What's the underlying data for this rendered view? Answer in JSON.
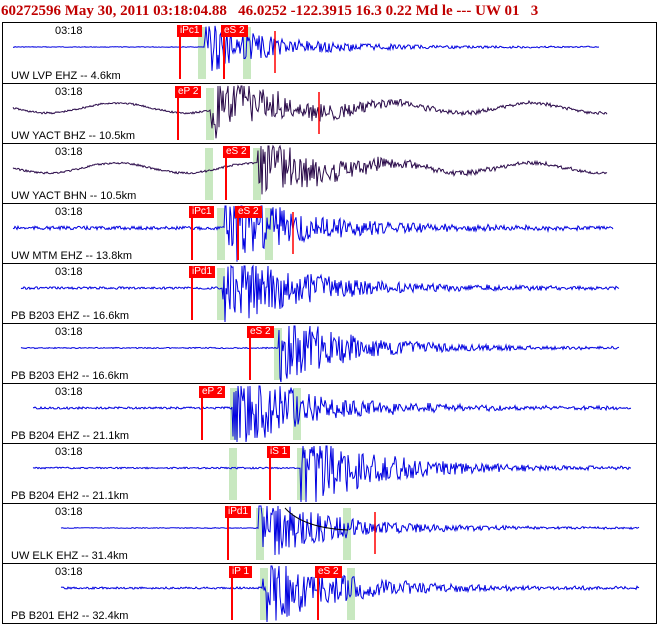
{
  "header": {
    "title": "60272596 May 30, 2011 03:18:04.88   46.0252 -122.3915 16.3 0.22 Md le --- UW 01   3"
  },
  "colors": {
    "header_text": "#c00000",
    "trace_default": "#0000e0",
    "trace_alt": "#2a0a4a",
    "pick": "#ff0000",
    "band": "#c8e8c0"
  },
  "panels": [
    {
      "time": "03:18",
      "station": "UW LVP EHZ -- 4.6km",
      "trace": "blue",
      "picks": [
        {
          "label": "iPc1"
        },
        {
          "label": "eS 2"
        }
      ]
    },
    {
      "time": "03:18",
      "station": "UW YACT BHZ -- 10.5km",
      "trace": "dark",
      "picks": [
        {
          "label": "eP 2"
        }
      ]
    },
    {
      "time": "03:18",
      "station": "UW YACT BHN -- 10.5km",
      "trace": "dark",
      "picks": [
        {
          "label": "eS 2"
        }
      ]
    },
    {
      "time": "03:18",
      "station": "UW MTM EHZ -- 13.8km",
      "trace": "blue",
      "picks": [
        {
          "label": "iPc1"
        },
        {
          "label": "eS 2"
        }
      ]
    },
    {
      "time": "03:18",
      "station": "PB B203 EHZ -- 16.6km",
      "trace": "blue",
      "picks": [
        {
          "label": "iPd1"
        }
      ]
    },
    {
      "time": "03:18",
      "station": "PB B203 EH2 -- 16.6km",
      "trace": "blue",
      "picks": [
        {
          "label": "eS 2"
        }
      ]
    },
    {
      "time": "03:18",
      "station": "PB B204 EHZ -- 21.1km",
      "trace": "blue",
      "picks": [
        {
          "label": "eP 2"
        }
      ]
    },
    {
      "time": "03:18",
      "station": "PB B204 EH2 -- 21.1km",
      "trace": "blue",
      "picks": [
        {
          "label": "iS 1"
        }
      ]
    },
    {
      "time": "03:18",
      "station": "UW ELK EHZ -- 31.4km",
      "trace": "blue",
      "picks": [
        {
          "label": "iPd1"
        }
      ]
    },
    {
      "time": "03:18",
      "station": "PB B201 EH2 -- 32.4km",
      "trace": "blue",
      "picks": [
        {
          "label": "iP 1"
        },
        {
          "label": "eS 2"
        }
      ]
    }
  ]
}
